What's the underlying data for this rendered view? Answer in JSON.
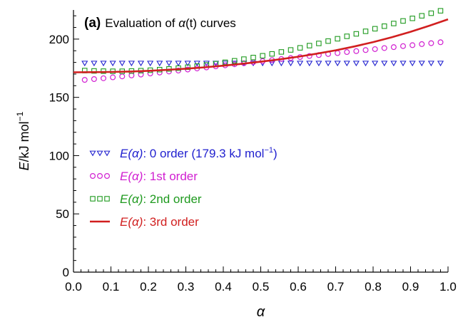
{
  "chart_data": {
    "type": "scatter",
    "panel_label": "(a)",
    "title_main": "Evaluation of ",
    "title_var": "α",
    "title_rest": "(t) curves",
    "xlabel": "α",
    "ylabel_main": "E",
    "ylabel_rest": "/kJ mol",
    "ylabel_sup": "−1",
    "xlim": [
      0.0,
      1.0
    ],
    "ylim": [
      0,
      225
    ],
    "x_ticks": [
      0.0,
      0.1,
      0.2,
      0.3,
      0.4,
      0.5,
      0.6,
      0.7,
      0.8,
      0.9,
      1.0
    ],
    "x_tick_labels": [
      "0.0",
      "0.1",
      "0.2",
      "0.3",
      "0.4",
      "0.5",
      "0.6",
      "0.7",
      "0.8",
      "0.9",
      "1.0"
    ],
    "y_ticks": [
      0,
      50,
      100,
      150,
      200
    ],
    "y_tick_labels": [
      "0",
      "50",
      "100",
      "150",
      "200"
    ],
    "grid": false,
    "legend_position": "center-left",
    "series": [
      {
        "legend_var": "E(α)",
        "legend_text": ": 0 order  (179.3 kJ mol",
        "legend_sup": "−1",
        "legend_tail": ")",
        "marker": "triangle-down",
        "color": "#1f1fcf",
        "x": [
          0.03,
          0.055,
          0.08,
          0.105,
          0.13,
          0.155,
          0.18,
          0.205,
          0.23,
          0.255,
          0.28,
          0.305,
          0.33,
          0.355,
          0.38,
          0.405,
          0.43,
          0.455,
          0.48,
          0.505,
          0.53,
          0.555,
          0.58,
          0.605,
          0.63,
          0.655,
          0.68,
          0.705,
          0.73,
          0.755,
          0.78,
          0.805,
          0.83,
          0.855,
          0.88,
          0.905,
          0.93,
          0.955,
          0.98
        ],
        "y": [
          179.3,
          179.3,
          179.3,
          179.3,
          179.3,
          179.3,
          179.3,
          179.3,
          179.3,
          179.3,
          179.3,
          179.3,
          179.3,
          179.3,
          179.3,
          179.3,
          179.3,
          179.3,
          179.3,
          179.3,
          179.3,
          179.3,
          179.3,
          179.3,
          179.3,
          179.3,
          179.3,
          179.3,
          179.3,
          179.3,
          179.3,
          179.3,
          179.3,
          179.3,
          179.3,
          179.3,
          179.3,
          179.3,
          179.3
        ]
      },
      {
        "legend_var": "E(α)",
        "legend_text": ": 1st order",
        "marker": "circle",
        "color": "#d11fd1",
        "x": [
          0.03,
          0.055,
          0.08,
          0.105,
          0.13,
          0.155,
          0.18,
          0.205,
          0.23,
          0.255,
          0.28,
          0.305,
          0.33,
          0.355,
          0.38,
          0.405,
          0.43,
          0.455,
          0.48,
          0.505,
          0.53,
          0.555,
          0.58,
          0.605,
          0.63,
          0.655,
          0.68,
          0.705,
          0.73,
          0.755,
          0.78,
          0.805,
          0.83,
          0.855,
          0.88,
          0.905,
          0.93,
          0.955,
          0.98
        ],
        "y": [
          165.0,
          165.7,
          166.4,
          167.2,
          168.0,
          168.8,
          169.6,
          170.5,
          171.3,
          172.2,
          173.0,
          173.9,
          174.8,
          175.7,
          176.6,
          177.5,
          178.4,
          179.3,
          180.2,
          181.1,
          182.0,
          182.9,
          183.7,
          184.6,
          185.5,
          186.3,
          187.2,
          188.0,
          188.9,
          189.7,
          190.6,
          191.4,
          192.3,
          193.1,
          194.0,
          194.8,
          195.7,
          196.5,
          197.3
        ]
      },
      {
        "legend_var": "E(α)",
        "legend_text": ": 2nd order",
        "marker": "square",
        "color": "#1f9a1f",
        "x": [
          0.03,
          0.055,
          0.08,
          0.105,
          0.13,
          0.155,
          0.18,
          0.205,
          0.23,
          0.255,
          0.28,
          0.305,
          0.33,
          0.355,
          0.38,
          0.405,
          0.43,
          0.455,
          0.48,
          0.505,
          0.53,
          0.555,
          0.58,
          0.605,
          0.63,
          0.655,
          0.68,
          0.705,
          0.73,
          0.755,
          0.78,
          0.805,
          0.83,
          0.855,
          0.88,
          0.905,
          0.93,
          0.955,
          0.98
        ],
        "y": [
          173.0,
          172.7,
          172.5,
          172.4,
          172.4,
          172.6,
          172.9,
          173.3,
          173.8,
          174.4,
          175.1,
          175.9,
          176.8,
          177.8,
          178.9,
          180.1,
          181.4,
          182.8,
          184.2,
          185.7,
          187.3,
          189.0,
          190.7,
          192.5,
          194.4,
          196.3,
          198.3,
          200.3,
          202.4,
          204.5,
          206.7,
          208.9,
          211.1,
          213.4,
          215.6,
          217.8,
          220.0,
          222.2,
          224.3
        ]
      },
      {
        "legend_var": "E(α)",
        "legend_text": ": 3rd order",
        "marker": "line",
        "color": "#d11f1f",
        "x": [
          0.0,
          0.05,
          0.1,
          0.15,
          0.2,
          0.25,
          0.3,
          0.35,
          0.4,
          0.45,
          0.5,
          0.55,
          0.6,
          0.65,
          0.7,
          0.75,
          0.8,
          0.85,
          0.9,
          0.95,
          1.0
        ],
        "y": [
          171.5,
          171.6,
          171.8,
          172.2,
          172.8,
          173.6,
          174.6,
          175.8,
          177.2,
          178.8,
          180.6,
          182.6,
          184.9,
          187.5,
          190.4,
          193.7,
          197.4,
          201.6,
          206.3,
          211.5,
          217.0
        ]
      }
    ]
  }
}
